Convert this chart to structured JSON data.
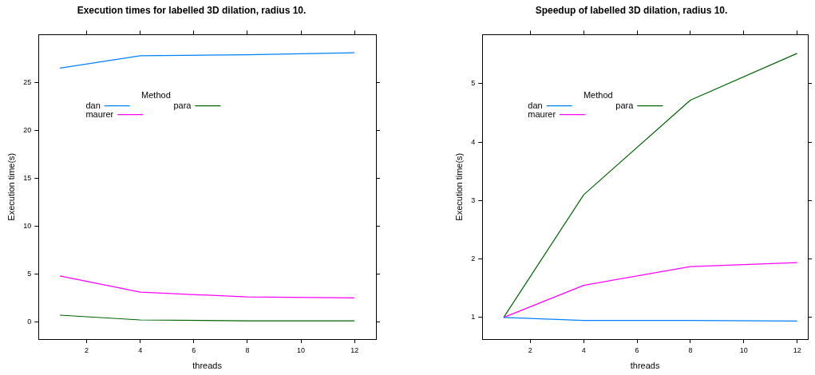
{
  "chart_data": [
    {
      "type": "line",
      "title": "Execution times for labelled 3D dilation, radius 10.",
      "xlabel": "threads",
      "ylabel": "Execution time(s)",
      "legend_title": "Method",
      "legend": "top left",
      "grid": false,
      "marker": "none",
      "line_style": "solid",
      "x": [
        1,
        4,
        8,
        12
      ],
      "xlim": [
        0.2,
        12.8
      ],
      "xticks": [
        2,
        4,
        6,
        8,
        10,
        12
      ],
      "ylim": [
        -1.8,
        30
      ],
      "yticks": [
        0,
        5,
        10,
        15,
        20,
        25
      ],
      "series": [
        {
          "name": "dan",
          "color": "#0080ff",
          "values": [
            26.5,
            27.8,
            27.9,
            28.1
          ]
        },
        {
          "name": "maurer",
          "color": "#ff00ff",
          "values": [
            4.8,
            3.1,
            2.6,
            2.5
          ]
        },
        {
          "name": "para",
          "color": "#006400",
          "values": [
            0.7,
            0.2,
            0.1,
            0.1
          ]
        }
      ]
    },
    {
      "type": "line",
      "title": "Speedup of labelled 3D dilation, radius 10.",
      "xlabel": "threads",
      "ylabel": "Execution time(s)",
      "legend_title": "Method",
      "legend": "top left",
      "grid": false,
      "marker": "none",
      "line_style": "solid",
      "x": [
        1,
        4,
        8,
        12
      ],
      "xlim": [
        0.2,
        12.4
      ],
      "xticks": [
        2,
        4,
        6,
        8,
        10,
        12
      ],
      "ylim": [
        0.63,
        5.84
      ],
      "yticks": [
        1,
        2,
        3,
        4,
        5
      ],
      "series": [
        {
          "name": "dan",
          "color": "#0080ff",
          "values": [
            1,
            0.95,
            0.95,
            0.94
          ]
        },
        {
          "name": "maurer",
          "color": "#ff00ff",
          "values": [
            1,
            1.55,
            1.87,
            1.94
          ]
        },
        {
          "name": "para",
          "color": "#006400",
          "values": [
            1,
            3.1,
            4.72,
            5.52
          ]
        }
      ]
    }
  ]
}
